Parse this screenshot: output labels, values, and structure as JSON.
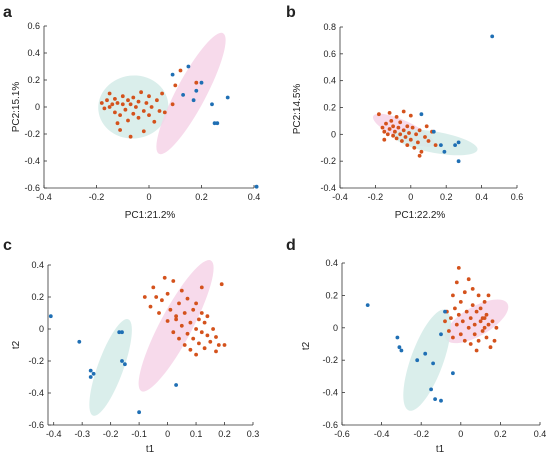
{
  "colors": {
    "group_a_points": "#d4521c",
    "group_b_points": "#1f6fb4",
    "group_a_ellipse": "#f6d3e8",
    "group_b_ellipse": "#d3ebe8",
    "axis": "#333333"
  },
  "chart_data": [
    {
      "type": "scatter",
      "panel_label": "a",
      "xlabel": "PC1:21.2%",
      "ylabel": "PC2:15.1%",
      "xlim": [
        -0.4,
        0.4
      ],
      "ylim": [
        -0.6,
        0.6
      ],
      "xticks": [
        "-0.4",
        "-0.2",
        "0",
        "0.2",
        "0.4"
      ],
      "yticks": [
        "-0.6",
        "-0.4",
        "-0.2",
        "0",
        "0.2",
        "0.4",
        "0.6"
      ],
      "ellipses": [
        {
          "group": "group_b",
          "cx": -0.06,
          "cy": 0.0,
          "rx": 0.12,
          "ry": 0.26,
          "angle_deg": 84
        },
        {
          "group": "group_a",
          "cx": 0.16,
          "cy": 0.1,
          "rx": 0.26,
          "ry": 0.11,
          "angle_deg": -62
        }
      ],
      "series": [
        {
          "group": "group_a",
          "points": [
            [
              -0.18,
              0.03
            ],
            [
              -0.17,
              -0.01
            ],
            [
              -0.16,
              0.05
            ],
            [
              -0.15,
              0.0
            ],
            [
              -0.14,
              0.02
            ],
            [
              -0.13,
              -0.04
            ],
            [
              -0.13,
              0.06
            ],
            [
              -0.12,
              0.03
            ],
            [
              -0.11,
              -0.06
            ],
            [
              -0.1,
              0.02
            ],
            [
              -0.1,
              0.08
            ],
            [
              -0.09,
              -0.02
            ],
            [
              -0.08,
              0.05
            ],
            [
              -0.08,
              -0.1
            ],
            [
              -0.07,
              0.02
            ],
            [
              -0.06,
              -0.05
            ],
            [
              -0.06,
              0.07
            ],
            [
              -0.05,
              0.0
            ],
            [
              -0.04,
              -0.08
            ],
            [
              -0.04,
              0.04
            ],
            [
              -0.03,
              0.11
            ],
            [
              -0.02,
              -0.03
            ],
            [
              -0.01,
              0.03
            ],
            [
              0.0,
              -0.06
            ],
            [
              0.0,
              0.08
            ],
            [
              0.01,
              0.0
            ],
            [
              0.02,
              -0.11
            ],
            [
              0.03,
              0.05
            ],
            [
              0.04,
              -0.03
            ],
            [
              0.05,
              0.1
            ],
            [
              -0.11,
              -0.17
            ],
            [
              -0.07,
              -0.22
            ],
            [
              -0.02,
              -0.18
            ],
            [
              0.09,
              0.02
            ],
            [
              0.1,
              0.16
            ],
            [
              0.12,
              0.27
            ],
            [
              0.18,
              0.18
            ],
            [
              0.06,
              -0.04
            ],
            [
              -0.15,
              0.1
            ],
            [
              -0.12,
              -0.12
            ]
          ]
        },
        {
          "group": "group_b",
          "points": [
            [
              0.09,
              0.24
            ],
            [
              0.13,
              0.09
            ],
            [
              0.17,
              0.05
            ],
            [
              0.2,
              0.18
            ],
            [
              0.15,
              0.3
            ],
            [
              0.24,
              0.02
            ],
            [
              0.26,
              -0.12
            ],
            [
              0.25,
              -0.12
            ],
            [
              0.3,
              0.07
            ],
            [
              0.41,
              -0.59
            ],
            [
              0.18,
              0.12
            ]
          ]
        }
      ]
    },
    {
      "type": "scatter",
      "panel_label": "b",
      "xlabel": "PC1:22.2%",
      "ylabel": "PC2:14.5%",
      "xlim": [
        -0.4,
        0.6
      ],
      "ylim": [
        -0.4,
        0.8
      ],
      "xticks": [
        "-0.4",
        "-0.2",
        "0",
        "0.2",
        "0.4",
        "0.6"
      ],
      "yticks": [
        "-0.4",
        "-0.2",
        "0",
        "0.2",
        "0.4",
        "0.6",
        "0.8"
      ],
      "ellipses": [
        {
          "group": "group_a",
          "cx": -0.04,
          "cy": 0.03,
          "rx": 0.19,
          "ry": 0.07,
          "angle_deg": 25
        },
        {
          "group": "group_b",
          "cx": 0.14,
          "cy": -0.06,
          "rx": 0.24,
          "ry": 0.08,
          "angle_deg": 10
        }
      ],
      "series": [
        {
          "group": "group_a",
          "points": [
            [
              -0.18,
              0.15
            ],
            [
              -0.16,
              0.05
            ],
            [
              -0.15,
              0.02
            ],
            [
              -0.14,
              0.08
            ],
            [
              -0.13,
              0.0
            ],
            [
              -0.12,
              0.04
            ],
            [
              -0.11,
              0.1
            ],
            [
              -0.1,
              -0.01
            ],
            [
              -0.1,
              0.06
            ],
            [
              -0.09,
              0.02
            ],
            [
              -0.08,
              0.13
            ],
            [
              -0.08,
              -0.03
            ],
            [
              -0.07,
              0.05
            ],
            [
              -0.06,
              0.0
            ],
            [
              -0.06,
              0.09
            ],
            [
              -0.05,
              -0.05
            ],
            [
              -0.04,
              0.03
            ],
            [
              -0.04,
              0.17
            ],
            [
              -0.03,
              -0.02
            ],
            [
              -0.02,
              0.06
            ],
            [
              -0.02,
              -0.08
            ],
            [
              -0.01,
              0.01
            ],
            [
              0.0,
              -0.04
            ],
            [
              0.01,
              0.05
            ],
            [
              0.02,
              -0.1
            ],
            [
              0.03,
              0.0
            ],
            [
              0.04,
              -0.06
            ],
            [
              0.05,
              0.03
            ],
            [
              0.06,
              -0.13
            ],
            [
              0.08,
              -0.02
            ],
            [
              0.1,
              -0.05
            ],
            [
              0.12,
              0.02
            ],
            [
              -0.12,
              0.16
            ],
            [
              0.0,
              0.14
            ],
            [
              0.05,
              -0.16
            ],
            [
              0.09,
              0.06
            ],
            [
              -0.15,
              -0.04
            ],
            [
              0.14,
              -0.08
            ]
          ]
        },
        {
          "group": "group_b",
          "points": [
            [
              0.06,
              0.15
            ],
            [
              0.13,
              0.02
            ],
            [
              0.17,
              -0.08
            ],
            [
              0.19,
              -0.13
            ],
            [
              0.25,
              -0.08
            ],
            [
              0.27,
              -0.06
            ],
            [
              0.27,
              -0.2
            ],
            [
              0.46,
              0.73
            ]
          ]
        }
      ]
    },
    {
      "type": "scatter",
      "panel_label": "c",
      "xlabel": "t1",
      "ylabel": "t2",
      "xlim": [
        -0.42,
        0.3
      ],
      "ylim": [
        -0.6,
        0.4
      ],
      "xticks": [
        "-0.4",
        "-0.3",
        "-0.2",
        "-0.1",
        "0",
        "0.1",
        "0.2",
        "0.3"
      ],
      "yticks": [
        "-0.6",
        "-0.4",
        "-0.2",
        "0",
        "0.2",
        "0.4"
      ],
      "ellipses": [
        {
          "group": "group_a",
          "cx": 0.03,
          "cy": 0.02,
          "rx": 0.26,
          "ry": 0.1,
          "angle_deg": -62
        },
        {
          "group": "group_b",
          "cx": -0.2,
          "cy": -0.24,
          "rx": 0.18,
          "ry": 0.08,
          "angle_deg": -70
        }
      ],
      "series": [
        {
          "group": "group_a",
          "points": [
            [
              -0.08,
              0.2
            ],
            [
              -0.06,
              0.14
            ],
            [
              -0.05,
              0.26
            ],
            [
              -0.03,
              0.1
            ],
            [
              -0.02,
              0.18
            ],
            [
              -0.01,
              0.32
            ],
            [
              0.0,
              0.05
            ],
            [
              0.0,
              0.22
            ],
            [
              0.01,
              0.12
            ],
            [
              0.02,
              -0.02
            ],
            [
              0.02,
              0.3
            ],
            [
              0.03,
              0.08
            ],
            [
              0.04,
              0.16
            ],
            [
              0.04,
              -0.06
            ],
            [
              0.05,
              0.02
            ],
            [
              0.05,
              0.24
            ],
            [
              0.06,
              -0.1
            ],
            [
              0.06,
              0.1
            ],
            [
              0.07,
              -0.03
            ],
            [
              0.07,
              0.19
            ],
            [
              0.08,
              0.04
            ],
            [
              0.08,
              -0.13
            ],
            [
              0.09,
              0.12
            ],
            [
              0.09,
              -0.06
            ],
            [
              0.1,
              0.0
            ],
            [
              0.1,
              0.16
            ],
            [
              0.11,
              -0.09
            ],
            [
              0.11,
              0.06
            ],
            [
              0.12,
              -0.02
            ],
            [
              0.12,
              0.1
            ],
            [
              0.13,
              -0.12
            ],
            [
              0.13,
              0.04
            ],
            [
              0.14,
              -0.04
            ],
            [
              0.14,
              0.08
            ],
            [
              0.15,
              -0.08
            ],
            [
              0.16,
              0.0
            ],
            [
              0.17,
              -0.14
            ],
            [
              0.17,
              -0.05
            ],
            [
              0.18,
              -0.1
            ],
            [
              0.2,
              -0.1
            ],
            [
              0.12,
              0.26
            ],
            [
              0.19,
              0.28
            ],
            [
              0.1,
              -0.16
            ],
            [
              0.03,
              0.06
            ],
            [
              -0.04,
              0.2
            ]
          ]
        },
        {
          "group": "group_b",
          "points": [
            [
              -0.41,
              0.08
            ],
            [
              -0.31,
              -0.08
            ],
            [
              -0.27,
              -0.26
            ],
            [
              -0.26,
              -0.28
            ],
            [
              -0.27,
              -0.3
            ],
            [
              -0.17,
              -0.02
            ],
            [
              -0.16,
              -0.02
            ],
            [
              -0.16,
              -0.2
            ],
            [
              -0.15,
              -0.22
            ],
            [
              -0.1,
              -0.52
            ],
            [
              0.03,
              -0.35
            ]
          ]
        }
      ]
    },
    {
      "type": "scatter",
      "panel_label": "d",
      "xlabel": "t1",
      "ylabel": "t2",
      "xlim": [
        -0.6,
        0.4
      ],
      "ylim": [
        -0.6,
        0.4
      ],
      "xticks": [
        "-0.6",
        "-0.4",
        "-0.2",
        "0",
        "0.2",
        "0.4"
      ],
      "yticks": [
        "-0.6",
        "-0.4",
        "-0.2",
        "0",
        "0.2",
        "0.4"
      ],
      "ellipses": [
        {
          "group": "group_a",
          "cx": 0.08,
          "cy": 0.04,
          "rx": 0.18,
          "ry": 0.09,
          "angle_deg": -30
        },
        {
          "group": "group_b",
          "cx": -0.17,
          "cy": -0.2,
          "rx": 0.27,
          "ry": 0.1,
          "angle_deg": -70
        }
      ],
      "series": [
        {
          "group": "group_a",
          "points": [
            [
              -0.08,
              0.04
            ],
            [
              -0.07,
              0.1
            ],
            [
              -0.06,
              -0.02
            ],
            [
              -0.05,
              0.06
            ],
            [
              -0.04,
              0.2
            ],
            [
              -0.04,
              -0.06
            ],
            [
              -0.03,
              0.12
            ],
            [
              -0.02,
              0.02
            ],
            [
              -0.02,
              0.28
            ],
            [
              -0.01,
              0.08
            ],
            [
              0.0,
              -0.04
            ],
            [
              0.0,
              0.16
            ],
            [
              0.01,
              0.04
            ],
            [
              0.02,
              0.22
            ],
            [
              0.02,
              -0.08
            ],
            [
              0.03,
              0.1
            ],
            [
              0.04,
              0.0
            ],
            [
              0.04,
              0.3
            ],
            [
              0.05,
              0.06
            ],
            [
              0.05,
              -0.1
            ],
            [
              0.06,
              0.14
            ],
            [
              0.07,
              0.02
            ],
            [
              0.07,
              -0.04
            ],
            [
              0.08,
              0.1
            ],
            [
              0.09,
              0.2
            ],
            [
              0.09,
              -0.08
            ],
            [
              0.1,
              0.04
            ],
            [
              0.1,
              0.12
            ],
            [
              0.11,
              -0.02
            ],
            [
              0.11,
              0.06
            ],
            [
              0.12,
              0.0
            ],
            [
              0.12,
              0.16
            ],
            [
              0.13,
              -0.06
            ],
            [
              0.13,
              0.08
            ],
            [
              0.14,
              0.02
            ],
            [
              0.15,
              -0.12
            ],
            [
              0.16,
              0.04
            ],
            [
              0.17,
              -0.08
            ],
            [
              0.18,
              0.0
            ],
            [
              0.06,
              0.24
            ],
            [
              0.14,
              0.2
            ],
            [
              -0.01,
              0.37
            ],
            [
              0.12,
              0.06
            ],
            [
              0.08,
              -0.14
            ]
          ]
        },
        {
          "group": "group_b",
          "points": [
            [
              -0.47,
              0.14
            ],
            [
              -0.32,
              -0.06
            ],
            [
              -0.31,
              -0.12
            ],
            [
              -0.3,
              -0.14
            ],
            [
              -0.22,
              -0.2
            ],
            [
              -0.15,
              -0.38
            ],
            [
              -0.14,
              -0.22
            ],
            [
              -0.13,
              -0.44
            ],
            [
              -0.1,
              -0.45
            ],
            [
              -0.1,
              -0.04
            ],
            [
              -0.08,
              0.1
            ],
            [
              -0.04,
              -0.28
            ],
            [
              -0.18,
              -0.16
            ]
          ]
        }
      ]
    }
  ]
}
